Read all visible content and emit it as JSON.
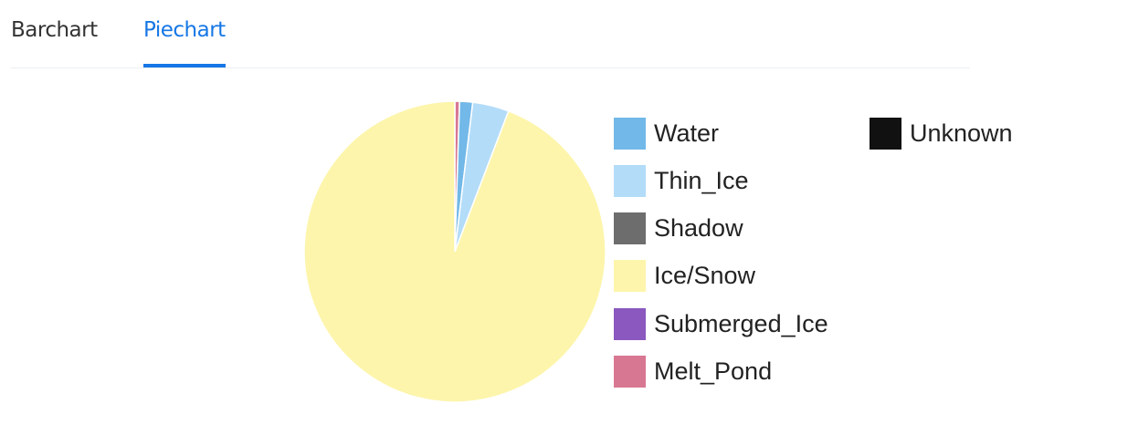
{
  "tabs": [
    {
      "label": "Barchart",
      "active": false
    },
    {
      "label": "Piechart",
      "active": true
    }
  ],
  "colors": {
    "tab_active": "#1677e6",
    "tab_inactive": "#333333"
  },
  "chart_data": {
    "type": "pie",
    "slices": [
      {
        "name": "Melt_Pond",
        "value": 0.5,
        "color": "#d87792"
      },
      {
        "name": "Water",
        "value": 1.4,
        "color": "#72b8e8"
      },
      {
        "name": "Thin_Ice",
        "value": 3.9,
        "color": "#b3dcf8"
      },
      {
        "name": "Ice/Snow",
        "value": 94.2,
        "color": "#fdf5ab"
      },
      {
        "name": "Shadow",
        "value": 0,
        "color": "#6d6d6d"
      },
      {
        "name": "Submerged_Ice",
        "value": 0,
        "color": "#8a58be"
      },
      {
        "name": "Unknown",
        "value": 0,
        "color": "#111111"
      }
    ],
    "legend": [
      {
        "name": "Water",
        "color": "#72b8e8"
      },
      {
        "name": "Thin_Ice",
        "color": "#b3dcf8"
      },
      {
        "name": "Shadow",
        "color": "#6d6d6d"
      },
      {
        "name": "Ice/Snow",
        "color": "#fdf5ab"
      },
      {
        "name": "Submerged_Ice",
        "color": "#8a58be"
      },
      {
        "name": "Melt_Pond",
        "color": "#d87792"
      },
      {
        "name": "Unknown",
        "color": "#111111"
      }
    ],
    "legend_position": "right",
    "start_angle": "top",
    "direction": "clockwise"
  }
}
